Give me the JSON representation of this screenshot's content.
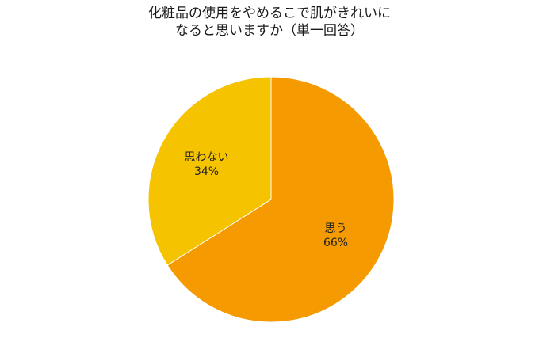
{
  "chart_data": {
    "type": "pie",
    "title_lines": [
      "化粧品の使用をやめるこで肌がきれいに",
      "なると思いますか（単一回答）"
    ],
    "slices": [
      {
        "label": "思う",
        "value": 66,
        "value_text": "66%",
        "color": "#F59A00"
      },
      {
        "label": "思わない",
        "value": 34,
        "value_text": "34%",
        "color": "#F5C300"
      }
    ],
    "start_angle_deg": 0,
    "direction": "clockwise",
    "slice_border_color": "#ffffff",
    "legend": "none"
  }
}
